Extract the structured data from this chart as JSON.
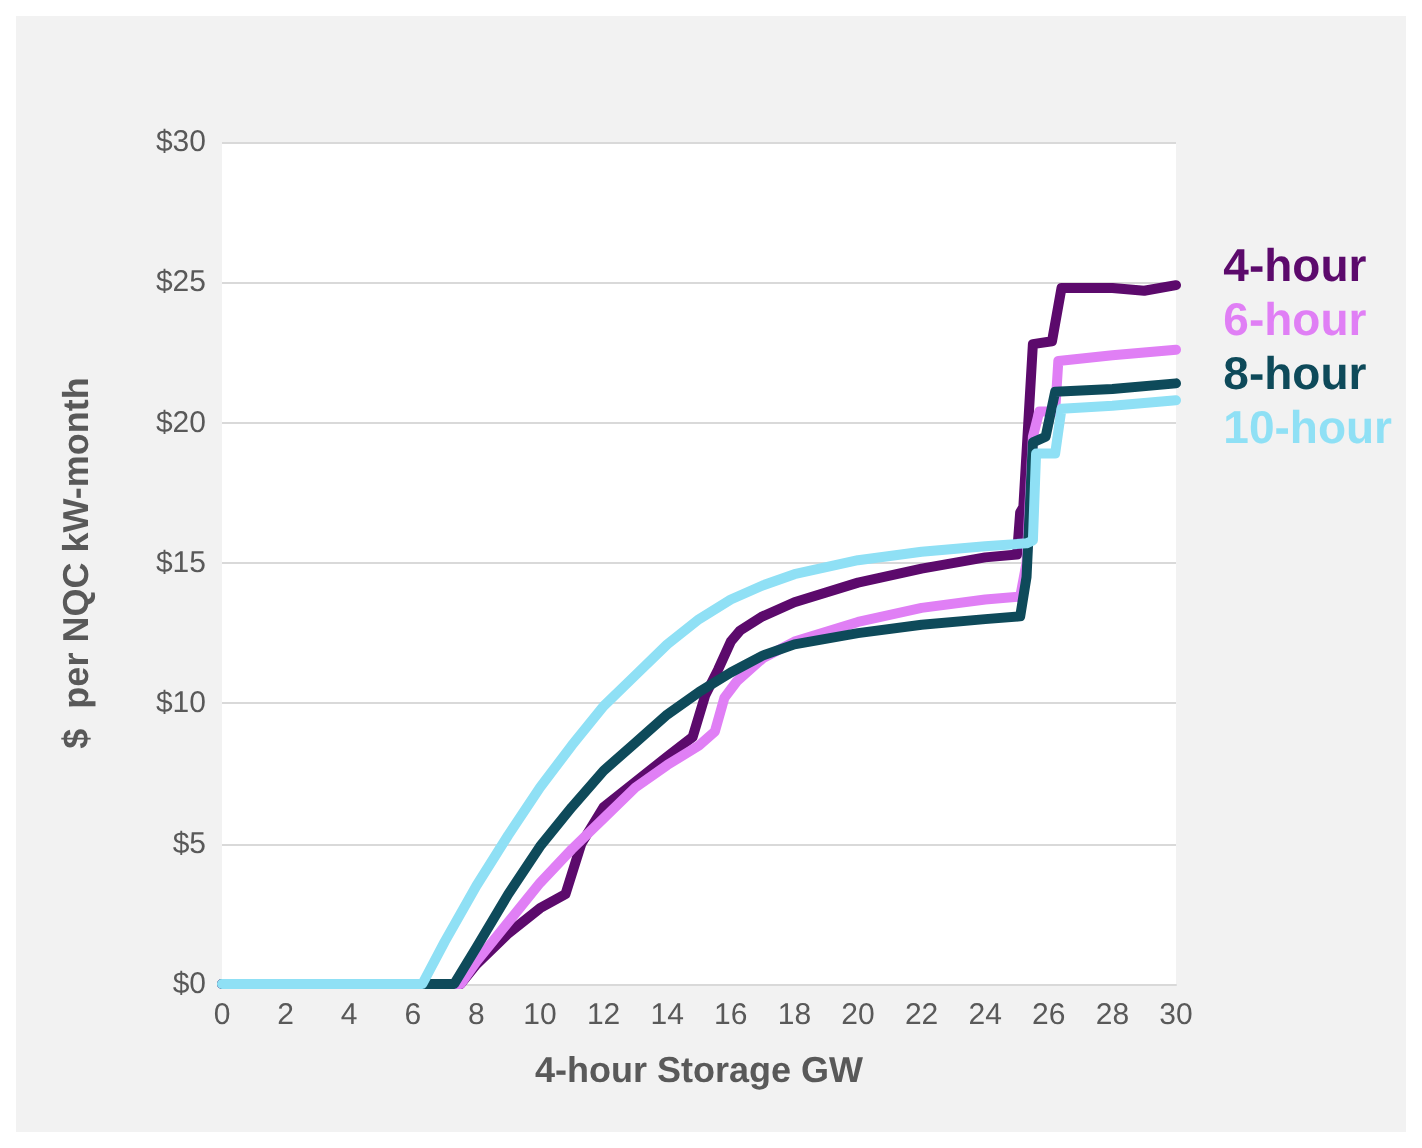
{
  "chart_data": {
    "type": "line",
    "xlabel": "4-hour Storage GW",
    "ylabel": "$  per NQC kW-month",
    "xlim": [
      0,
      30
    ],
    "xticks": [
      0,
      2,
      4,
      6,
      8,
      10,
      12,
      14,
      16,
      18,
      20,
      22,
      24,
      26,
      28,
      30
    ],
    "ylim": [
      0,
      30
    ],
    "yticks": [
      {
        "value": 0,
        "label": "$0"
      },
      {
        "value": 5,
        "label": "$5"
      },
      {
        "value": 10,
        "label": "$10"
      },
      {
        "value": 15,
        "label": "$15"
      },
      {
        "value": 20,
        "label": "$20"
      },
      {
        "value": 25,
        "label": "$25"
      },
      {
        "value": 30,
        "label": "$30"
      }
    ],
    "grid": "y",
    "legend": "right",
    "marker": "none",
    "line_style": "solid",
    "series": [
      {
        "name": "4-hour",
        "color": "#5c0a6c",
        "x": [
          0,
          7.5,
          8,
          9,
          10,
          10.8,
          11.3,
          12,
          13,
          14,
          14.8,
          15.2,
          15.6,
          16,
          16.3,
          17,
          18,
          20,
          22,
          24,
          25,
          25.1,
          25.2,
          25.5,
          26.1,
          26.4,
          28,
          29,
          30
        ],
        "values": [
          0,
          0,
          0.7,
          1.8,
          2.7,
          3.2,
          5,
          6.3,
          7.2,
          8.1,
          8.8,
          10.3,
          11.2,
          12.2,
          12.6,
          13.1,
          13.6,
          14.3,
          14.8,
          15.2,
          15.3,
          16.8,
          17,
          22.8,
          22.9,
          24.8,
          24.8,
          24.7,
          24.9
        ]
      },
      {
        "name": "6-hour",
        "color": "#e07ff5",
        "x": [
          0,
          7.5,
          8,
          9,
          10,
          11,
          12,
          13,
          14,
          15,
          15.5,
          15.8,
          16.2,
          17,
          18,
          20,
          22,
          24,
          25.1,
          25.3,
          25.5,
          25.7,
          26.2,
          26.3,
          28,
          30
        ],
        "values": [
          0,
          0,
          0.8,
          2.2,
          3.6,
          4.8,
          5.9,
          7,
          7.8,
          8.5,
          9,
          10.2,
          10.8,
          11.6,
          12.2,
          12.9,
          13.4,
          13.7,
          13.8,
          15,
          19.5,
          20.4,
          20.4,
          22.2,
          22.4,
          22.6
        ]
      },
      {
        "name": "8-hour",
        "color": "#0e4a5a",
        "x": [
          0,
          7.3,
          8,
          9,
          10,
          11,
          12,
          13,
          14,
          15,
          16,
          17,
          18,
          20,
          22,
          24,
          25.1,
          25.3,
          25.5,
          25.9,
          26.2,
          28,
          30
        ],
        "values": [
          0,
          0,
          1.3,
          3.2,
          4.9,
          6.3,
          7.6,
          8.6,
          9.6,
          10.4,
          11.1,
          11.7,
          12.1,
          12.5,
          12.8,
          13,
          13.1,
          14.5,
          19.3,
          19.5,
          21.1,
          21.2,
          21.4
        ]
      },
      {
        "name": "10-hour",
        "color": "#8fe0f5",
        "x": [
          0,
          6.3,
          7,
          8,
          9,
          10,
          11,
          12,
          13,
          14,
          15,
          16,
          17,
          18,
          20,
          22,
          24,
          25.3,
          25.5,
          25.6,
          26.2,
          26.4,
          28,
          30
        ],
        "values": [
          0,
          0,
          1.5,
          3.5,
          5.3,
          7,
          8.5,
          9.9,
          11,
          12.1,
          13,
          13.7,
          14.2,
          14.6,
          15.1,
          15.4,
          15.6,
          15.7,
          15.8,
          18.9,
          18.9,
          20.5,
          20.6,
          20.8
        ]
      }
    ]
  }
}
